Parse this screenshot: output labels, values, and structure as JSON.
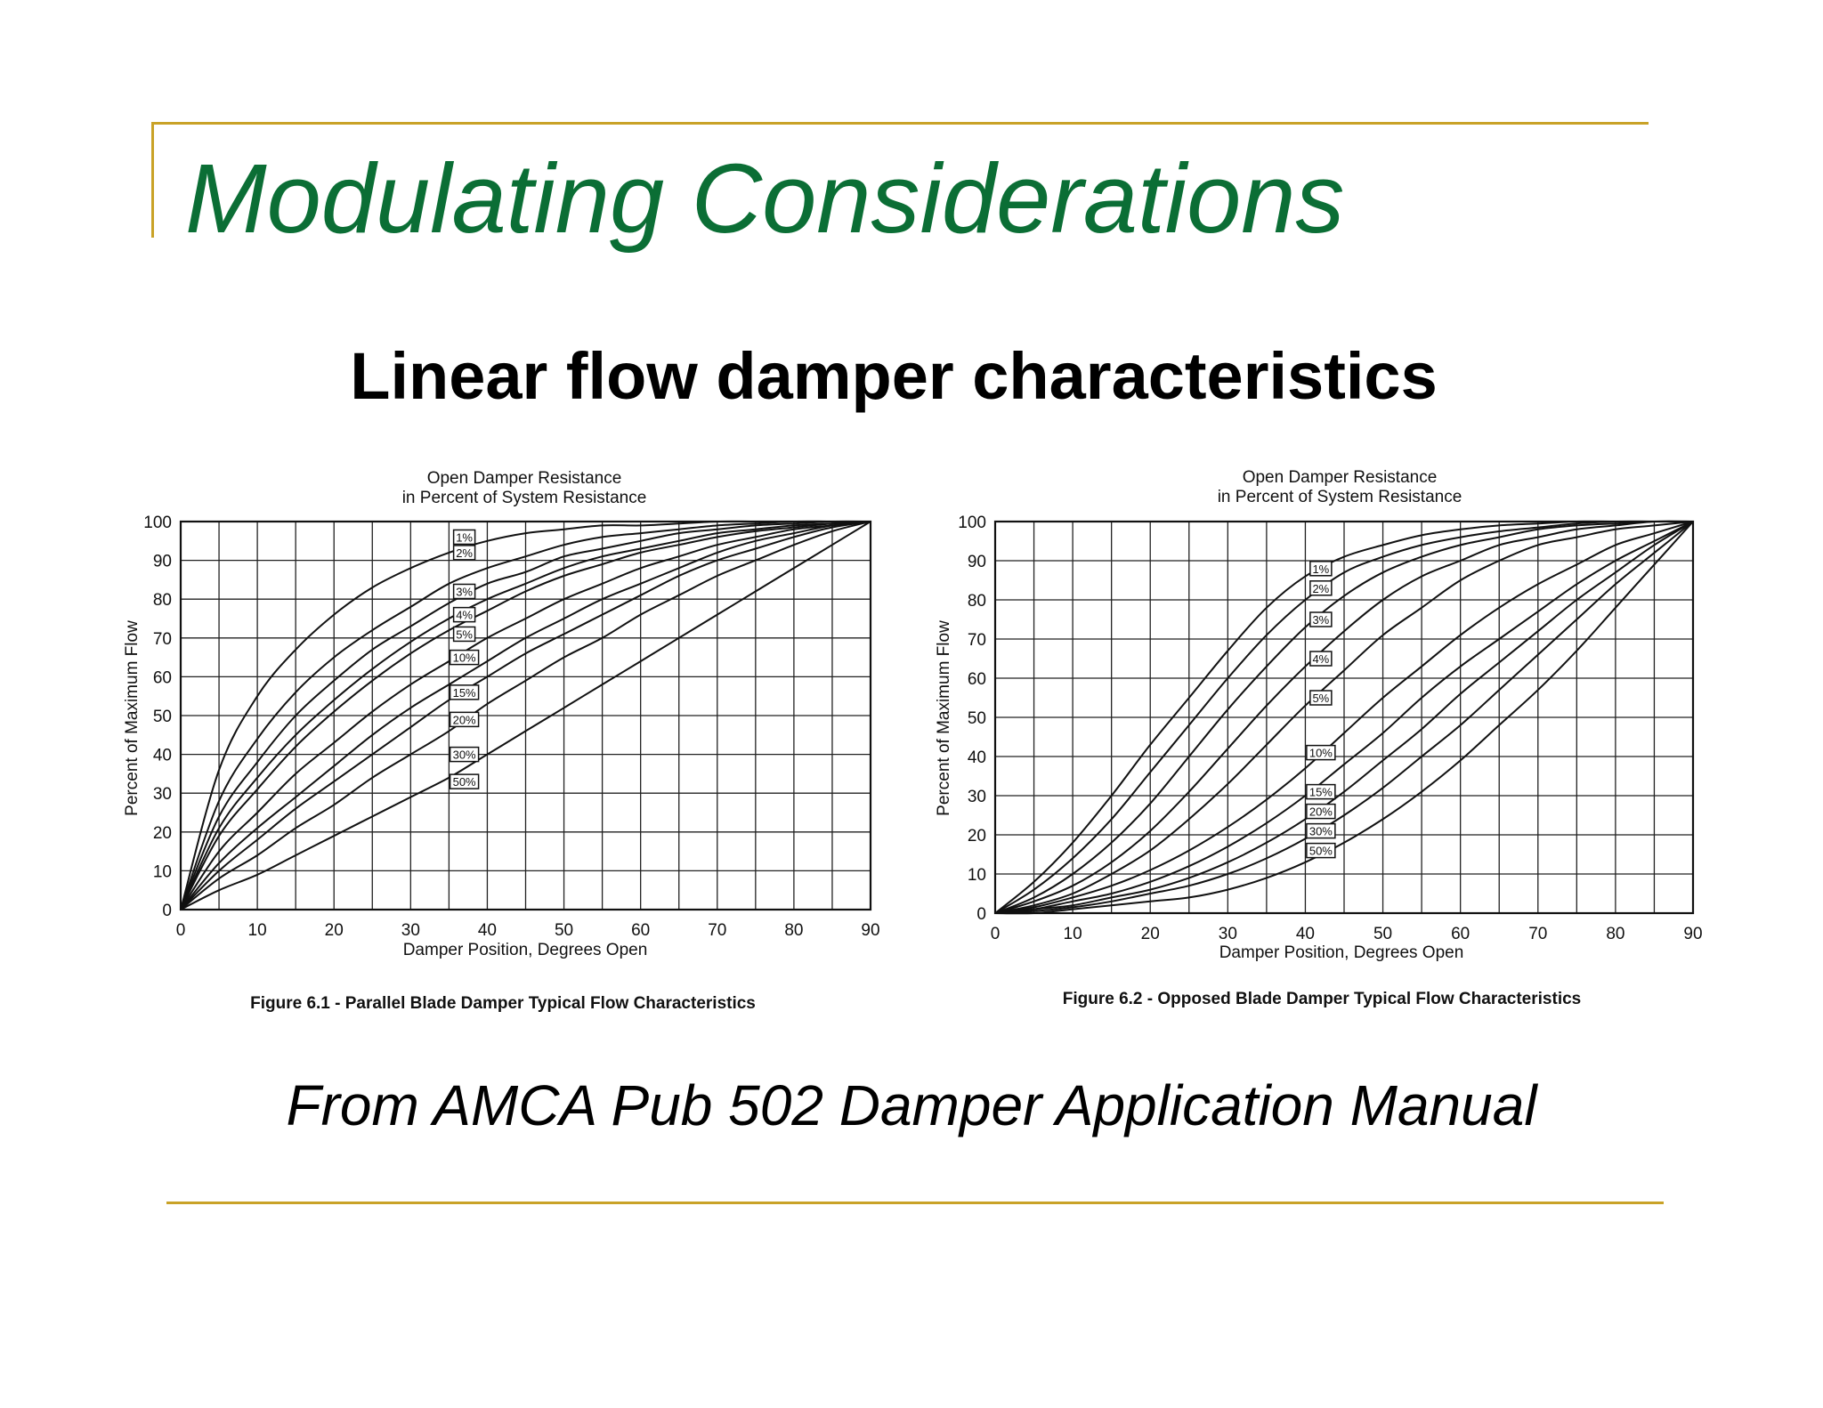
{
  "slide": {
    "title": "Modulating Considerations",
    "subtitle": "Linear flow damper characteristics",
    "credit": "From AMCA Pub 502 Damper Application Manual",
    "colors": {
      "title": "#0b6e35",
      "accent": "#c9a227"
    }
  },
  "chart_data": [
    {
      "type": "line",
      "title_lines": [
        "Open Damper Resistance",
        "in Percent of System Resistance"
      ],
      "xlabel": "Damper Position, Degrees Open",
      "ylabel": "Percent of Maximum Flow",
      "caption": "Figure 6.1 - Parallel Blade Damper Typical Flow Characteristics",
      "xlim": [
        0,
        90
      ],
      "ylim": [
        0,
        100
      ],
      "xticks": [
        0,
        10,
        20,
        30,
        40,
        50,
        60,
        70,
        80,
        90
      ],
      "yticks": [
        0,
        10,
        20,
        30,
        40,
        50,
        60,
        70,
        80,
        90,
        100
      ],
      "grid": true,
      "x": [
        0,
        5,
        10,
        15,
        20,
        25,
        30,
        35,
        40,
        45,
        50,
        55,
        60,
        65,
        70,
        75,
        80,
        85,
        90
      ],
      "series": [
        {
          "name": "1%",
          "label_at": [
            37,
            96
          ],
          "values": [
            0,
            36,
            55,
            67,
            76,
            83,
            88,
            92,
            95,
            97,
            98,
            99,
            99,
            99.5,
            100,
            100,
            100,
            100,
            100
          ]
        },
        {
          "name": "2%",
          "label_at": [
            37,
            92
          ],
          "values": [
            0,
            28,
            44,
            56,
            65,
            72,
            78,
            84,
            88,
            91,
            94,
            96,
            97,
            98,
            99,
            99.5,
            100,
            100,
            100
          ]
        },
        {
          "name": "3%",
          "label_at": [
            37,
            82
          ],
          "values": [
            0,
            24,
            38,
            50,
            59,
            67,
            73,
            79,
            84,
            87,
            91,
            93,
            95,
            97,
            98,
            99,
            99.5,
            100,
            100
          ]
        },
        {
          "name": "4%",
          "label_at": [
            37,
            76
          ],
          "values": [
            0,
            21,
            34,
            45,
            54,
            62,
            69,
            75,
            80,
            84,
            88,
            91,
            93,
            95,
            97,
            98,
            99,
            99.5,
            100
          ]
        },
        {
          "name": "5%",
          "label_at": [
            37,
            71
          ],
          "values": [
            0,
            19,
            31,
            42,
            51,
            59,
            66,
            72,
            77,
            82,
            86,
            89,
            92,
            94,
            96,
            97.5,
            98.5,
            99.5,
            100
          ]
        },
        {
          "name": "10%",
          "label_at": [
            37,
            65
          ],
          "values": [
            0,
            15,
            25,
            35,
            43,
            51,
            58,
            64,
            70,
            75,
            80,
            84,
            88,
            91,
            94,
            96,
            98,
            99,
            100
          ]
        },
        {
          "name": "15%",
          "label_at": [
            37,
            56
          ],
          "values": [
            0,
            12,
            21,
            29,
            37,
            45,
            52,
            58,
            64,
            70,
            75,
            80,
            84,
            88,
            92,
            95,
            97,
            99,
            100
          ]
        },
        {
          "name": "20%",
          "label_at": [
            37,
            49
          ],
          "values": [
            0,
            10,
            18,
            26,
            33,
            40,
            47,
            54,
            60,
            66,
            71,
            76,
            81,
            86,
            90,
            93,
            96,
            98.5,
            100
          ]
        },
        {
          "name": "30%",
          "label_at": [
            37,
            40
          ],
          "values": [
            0,
            8,
            14,
            21,
            27,
            34,
            40,
            46,
            53,
            59,
            65,
            70,
            76,
            81,
            86,
            90,
            94,
            97.5,
            100
          ]
        },
        {
          "name": "50%",
          "label_at": [
            37,
            33
          ],
          "values": [
            0,
            5,
            9,
            14,
            19,
            24,
            29,
            34,
            40,
            46,
            52,
            58,
            64,
            70,
            76,
            82,
            88,
            94,
            100
          ]
        }
      ]
    },
    {
      "type": "line",
      "title_lines": [
        "Open Damper Resistance",
        "in Percent of System Resistance"
      ],
      "xlabel": "Damper Position, Degrees Open",
      "ylabel": "Percent of Maximum Flow",
      "caption": "Figure 6.2 - Opposed Blade Damper Typical Flow Characteristics",
      "xlim": [
        0,
        90
      ],
      "ylim": [
        0,
        100
      ],
      "xticks": [
        0,
        10,
        20,
        30,
        40,
        50,
        60,
        70,
        80,
        90
      ],
      "yticks": [
        0,
        10,
        20,
        30,
        40,
        50,
        60,
        70,
        80,
        90,
        100
      ],
      "grid": true,
      "x": [
        0,
        5,
        10,
        15,
        20,
        25,
        30,
        35,
        40,
        45,
        50,
        55,
        60,
        65,
        70,
        75,
        80,
        85,
        90
      ],
      "series": [
        {
          "name": "1%",
          "label_at": [
            42,
            88
          ],
          "values": [
            0,
            8,
            18,
            30,
            43,
            55,
            67,
            78,
            86,
            91,
            94,
            96.5,
            98,
            99,
            99.5,
            100,
            100,
            100,
            100
          ]
        },
        {
          "name": "2%",
          "label_at": [
            42,
            83
          ],
          "values": [
            0,
            6,
            14,
            24,
            36,
            48,
            60,
            71,
            80,
            87,
            91,
            94,
            96,
            97.5,
            98.5,
            99.5,
            100,
            100,
            100
          ]
        },
        {
          "name": "3%",
          "label_at": [
            42,
            75
          ],
          "values": [
            0,
            4,
            10,
            18,
            28,
            40,
            52,
            63,
            73,
            81,
            87,
            91,
            94,
            96,
            98,
            99,
            99.5,
            100,
            100
          ]
        },
        {
          "name": "4%",
          "label_at": [
            42,
            65
          ],
          "values": [
            0,
            3,
            7,
            13,
            21,
            31,
            42,
            53,
            63,
            72,
            80,
            86,
            90,
            94,
            96,
            98,
            99,
            100,
            100
          ]
        },
        {
          "name": "5%",
          "label_at": [
            42,
            55
          ],
          "values": [
            0,
            2,
            5,
            10,
            16,
            24,
            33,
            43,
            53,
            62,
            71,
            78,
            85,
            90,
            94,
            96,
            98,
            99,
            100
          ]
        },
        {
          "name": "10%",
          "label_at": [
            42,
            41
          ],
          "values": [
            0,
            1.5,
            4,
            7,
            11,
            16,
            22,
            29,
            37,
            46,
            55,
            63,
            71,
            78,
            84,
            89,
            94,
            97,
            100
          ]
        },
        {
          "name": "15%",
          "label_at": [
            42,
            31
          ],
          "values": [
            0,
            1,
            3,
            5,
            8,
            12,
            17,
            23,
            30,
            38,
            46,
            55,
            63,
            70,
            77,
            84,
            90,
            95,
            100
          ]
        },
        {
          "name": "20%",
          "label_at": [
            42,
            26
          ],
          "values": [
            0,
            1,
            2,
            4,
            6,
            9,
            13,
            18,
            24,
            31,
            39,
            47,
            56,
            64,
            72,
            80,
            87,
            94,
            100
          ]
        },
        {
          "name": "30%",
          "label_at": [
            42,
            21
          ],
          "values": [
            0,
            0.5,
            1.5,
            3,
            5,
            7,
            10,
            14,
            19,
            25,
            32,
            40,
            48,
            57,
            66,
            75,
            84,
            92,
            100
          ]
        },
        {
          "name": "50%",
          "label_at": [
            42,
            16
          ],
          "values": [
            0,
            0,
            1,
            2,
            3,
            4,
            6,
            9,
            13,
            18,
            24,
            31,
            39,
            48,
            57,
            67,
            78,
            89,
            100
          ]
        }
      ]
    }
  ]
}
